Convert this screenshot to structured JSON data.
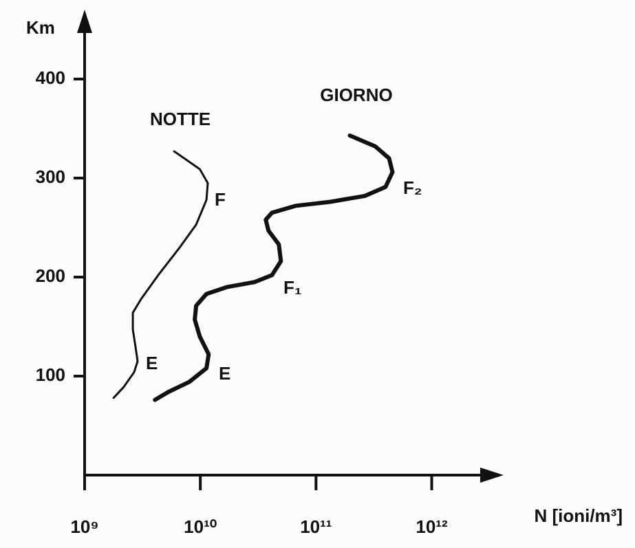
{
  "chart_data": {
    "type": "line",
    "y_label": "Km",
    "x_label": "N [ioni/m³]",
    "xscale": "log",
    "xlim": [
      1000000000,
      3800000000000
    ],
    "ylim": [
      0,
      459
    ],
    "xticks": [
      {
        "value": 1000000000,
        "label": "10⁹"
      },
      {
        "value": 10000000000,
        "label": "10¹⁰"
      },
      {
        "value": 100000000000,
        "label": "10¹¹"
      },
      {
        "value": 1000000000000,
        "label": "10¹²"
      }
    ],
    "yticks": [
      100,
      200,
      300,
      400
    ],
    "series": [
      {
        "name": "NOTTE",
        "color": "#111111",
        "x": [
          1780000000.0,
          2180000000.0,
          2680000000.0,
          2870000000.0,
          2760000000.0,
          2610000000.0,
          2610000000.0,
          3080000000.0,
          4330000000.0,
          6540000000.0,
          9200000000.0,
          11300000000.0,
          11600000000.0,
          9900000000.0,
          5940000000.0
        ],
        "values": [
          78,
          89,
          104,
          115,
          129,
          147,
          164,
          178,
          202,
          229,
          253,
          278,
          295,
          309,
          327
        ]
      },
      {
        "name": "GIORNO",
        "color": "#111111",
        "x": [
          4050000000.0,
          5300000000.0,
          8000000000.0,
          11300000000.0,
          11800000000.0,
          9900000000.0,
          8960000000.0,
          9200000000.0,
          11300000000.0,
          17100000000.0,
          29500000000.0,
          41600000000.0,
          49700000000.0,
          47700000000.0,
          38800000000.0,
          36800000000.0,
          41600000000.0,
          67000000000.0,
          133000000000.0,
          265000000000.0,
          399000000000.0,
          458000000000.0,
          428000000000.0,
          325000000000.0,
          196000000000.0
        ],
        "values": [
          76,
          84,
          94,
          108,
          122,
          140,
          157,
          171,
          183,
          190,
          195,
          202,
          216,
          233,
          247,
          258,
          265,
          272,
          276,
          282,
          291,
          306,
          320,
          332,
          343
        ]
      }
    ],
    "annotations": [
      "F",
      "E",
      "F₂",
      "F₁",
      "E"
    ]
  }
}
